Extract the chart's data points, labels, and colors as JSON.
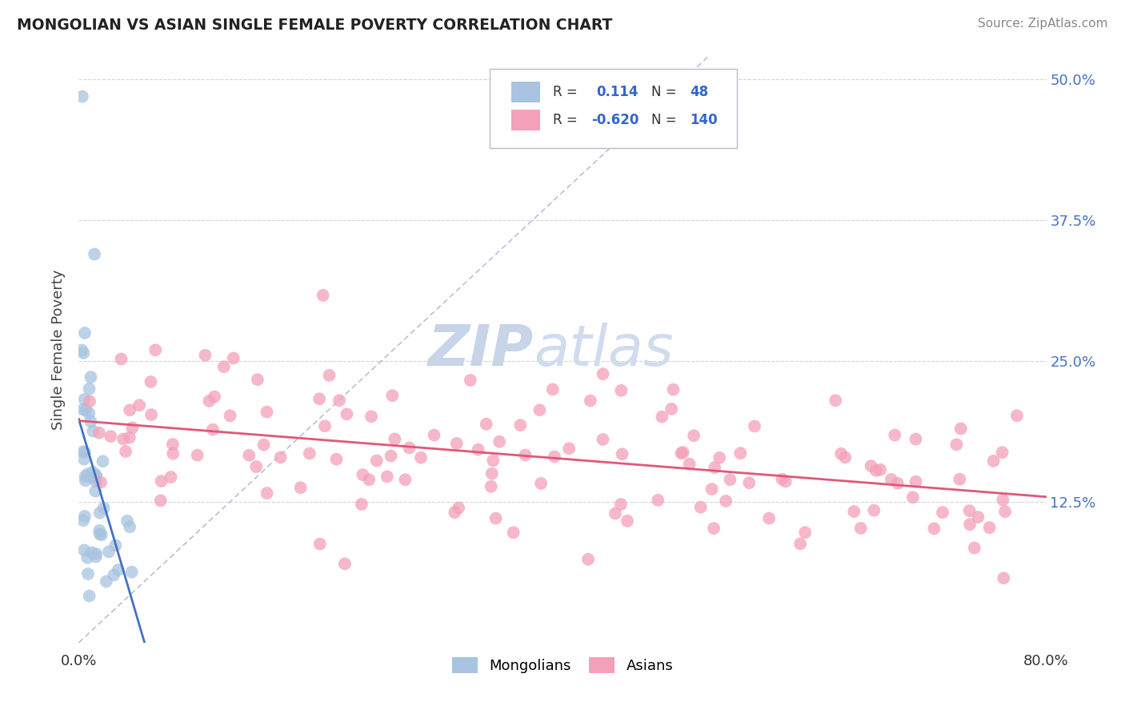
{
  "title": "MONGOLIAN VS ASIAN SINGLE FEMALE POVERTY CORRELATION CHART",
  "source": "Source: ZipAtlas.com",
  "ylabel": "Single Female Poverty",
  "y_ticks": [
    0.0,
    0.125,
    0.25,
    0.375,
    0.5
  ],
  "y_tick_labels": [
    "",
    "12.5%",
    "25.0%",
    "37.5%",
    "50.0%"
  ],
  "mongolian_R": 0.114,
  "mongolian_N": 48,
  "asian_R": -0.62,
  "asian_N": 140,
  "mongolian_color": "#a8c4e0",
  "asian_color": "#f4a0b8",
  "mongolian_trend_color": "#4472c4",
  "asian_trend_color": "#e05878",
  "reference_line_color": "#a0aed0",
  "background_color": "#ffffff",
  "xlim": [
    0.0,
    0.8
  ],
  "ylim": [
    0.0,
    0.52
  ]
}
